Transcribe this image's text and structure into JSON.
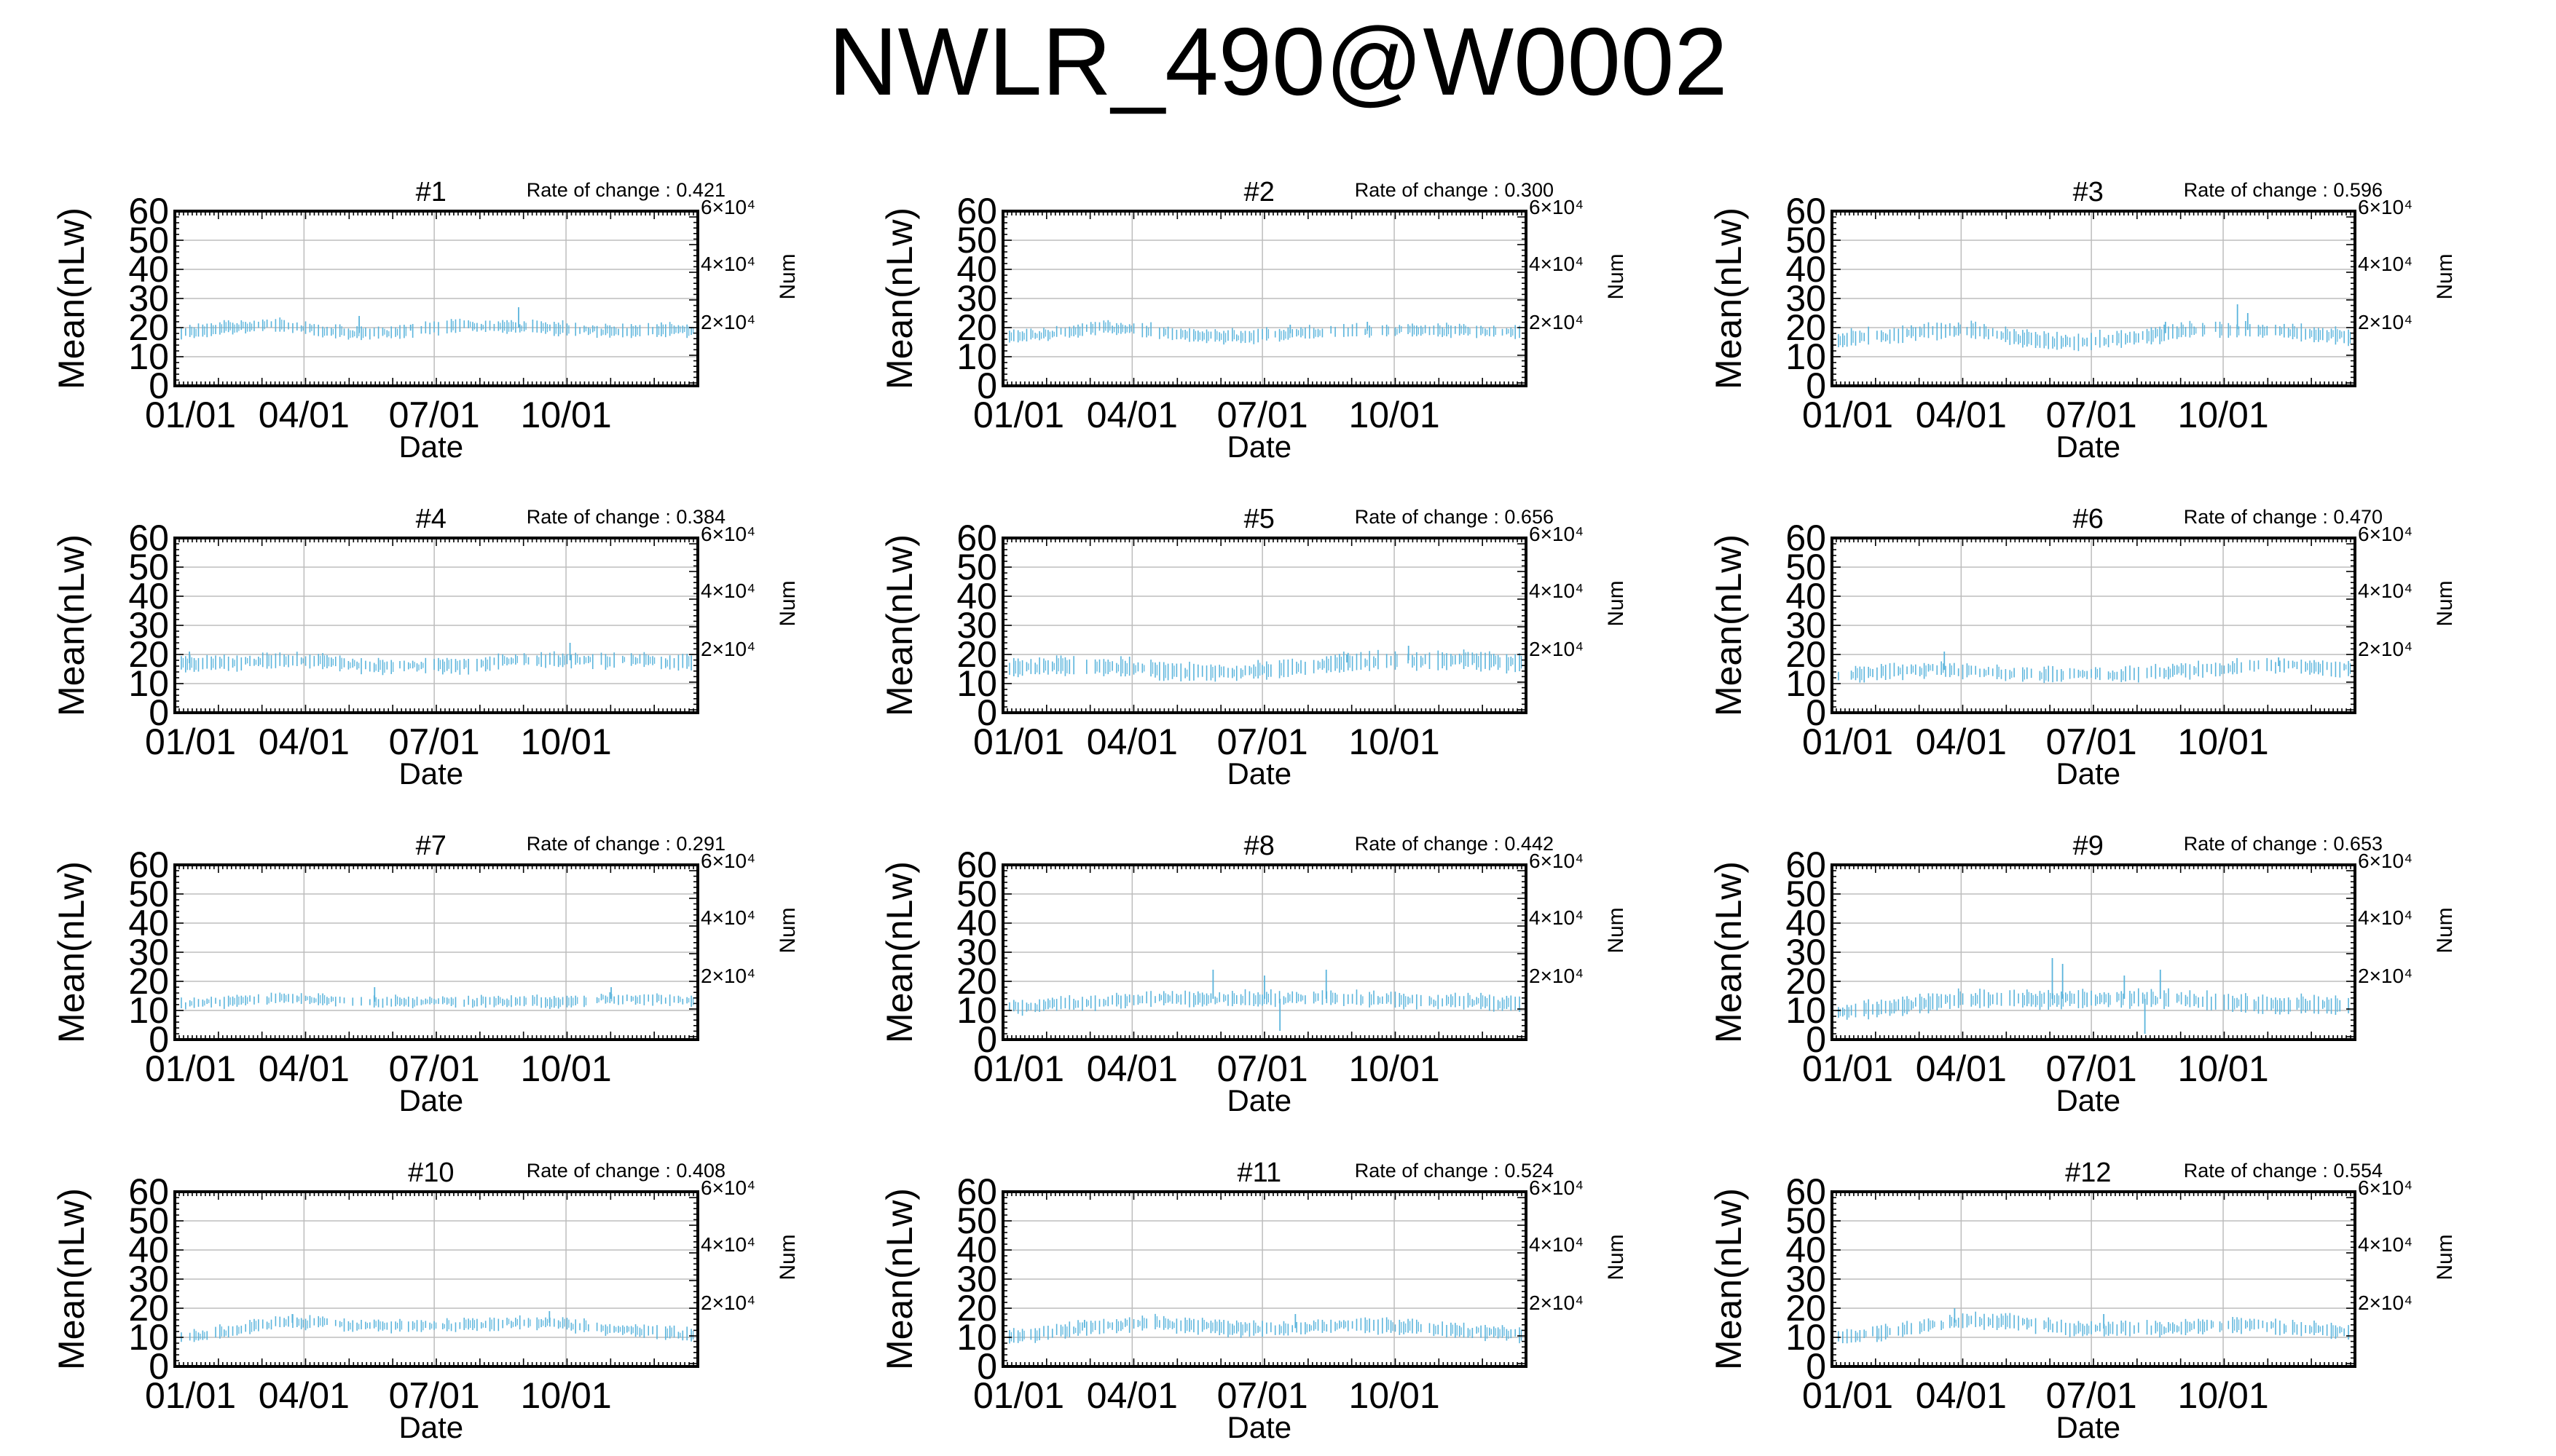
{
  "title": "NWLR_490@W0002",
  "colors": {
    "data": "#5ab4dc",
    "grid": "#bdbdbd",
    "axis": "#000000"
  },
  "chart_data": {
    "type": "scatter",
    "panel_count": 12,
    "grid": true,
    "xlabel": "Date",
    "ylabel": "Mean(nLw)",
    "y2label": "Num",
    "ylim": [
      0,
      60
    ],
    "yticks": [
      "0",
      "10",
      "20",
      "30",
      "40",
      "50",
      "60"
    ],
    "y2ticks": [
      "2×10⁴",
      "4×10⁴",
      "6×10⁴"
    ],
    "xticks": [
      "01/01",
      "04/01",
      "07/01",
      "10/01"
    ],
    "rate_prefix": "Rate of change : ",
    "panels": [
      {
        "label": "#1",
        "rate": "0.421",
        "profile": [
          18,
          20,
          21,
          19,
          18,
          19,
          21,
          20,
          20,
          19,
          19,
          19
        ],
        "spread": 3.5,
        "spikes": [
          [
            0.35,
            24
          ],
          [
            0.45,
            21
          ],
          [
            0.66,
            27
          ]
        ]
      },
      {
        "label": "#2",
        "rate": "0.300",
        "profile": [
          17,
          18,
          20,
          19,
          17,
          17,
          18,
          19,
          19,
          19,
          19,
          18
        ],
        "spread": 3.5,
        "spikes": [
          [
            0.55,
            21
          ],
          [
            0.7,
            22
          ]
        ]
      },
      {
        "label": "#3",
        "rate": "0.596",
        "profile": [
          16,
          17,
          19,
          19,
          16,
          15,
          16,
          18,
          20,
          19,
          18,
          17
        ],
        "spread": 4.5,
        "spikes": [
          [
            0.78,
            28
          ],
          [
            0.8,
            25
          ],
          [
            0.64,
            22
          ]
        ]
      },
      {
        "label": "#4",
        "rate": "0.384",
        "profile": [
          17,
          17,
          18,
          18,
          16,
          16,
          16,
          18,
          18,
          18,
          18,
          17
        ],
        "spread": 4,
        "spikes": [
          [
            0.76,
            24
          ],
          [
            0.02,
            21
          ]
        ]
      },
      {
        "label": "#5",
        "rate": "0.656",
        "profile": [
          15,
          16,
          16,
          15,
          14,
          14,
          15,
          17,
          18,
          18,
          18,
          17
        ],
        "spread": 5,
        "spikes": [
          [
            0.78,
            23
          ],
          [
            0.66,
            20
          ]
        ]
      },
      {
        "label": "#6",
        "rate": "0.470",
        "profile": [
          13,
          14,
          15,
          14,
          13,
          13,
          13,
          14,
          15,
          16,
          16,
          15
        ],
        "spread": 4,
        "spikes": [
          [
            0.21,
            21
          ],
          [
            0.86,
            19
          ]
        ]
      },
      {
        "label": "#7",
        "rate": "0.291",
        "profile": [
          12,
          13,
          14,
          14,
          13,
          13,
          13,
          13,
          13,
          14,
          14,
          13
        ],
        "spread": 3,
        "spikes": [
          [
            0.38,
            18
          ],
          [
            0.84,
            18
          ]
        ]
      },
      {
        "label": "#8",
        "rate": "0.442",
        "profile": [
          11,
          12,
          13,
          14,
          14,
          14,
          14,
          14,
          14,
          13,
          13,
          12
        ],
        "spread": 4,
        "spikes": [
          [
            0.4,
            24
          ],
          [
            0.5,
            22
          ],
          [
            0.62,
            24
          ],
          [
            0.53,
            3
          ]
        ]
      },
      {
        "label": "#9",
        "rate": "0.653",
        "profile": [
          9,
          11,
          13,
          14,
          14,
          14,
          14,
          14,
          13,
          12,
          12,
          11
        ],
        "spread": 5,
        "spikes": [
          [
            0.42,
            28
          ],
          [
            0.44,
            26
          ],
          [
            0.56,
            22
          ],
          [
            0.63,
            24
          ],
          [
            0.6,
            2
          ]
        ]
      },
      {
        "label": "#10",
        "rate": "0.408",
        "profile": [
          10,
          12,
          15,
          15,
          14,
          14,
          14,
          15,
          15,
          13,
          12,
          11
        ],
        "spread": 3.5,
        "spikes": [
          [
            0.22,
            18
          ],
          [
            0.72,
            19
          ]
        ]
      },
      {
        "label": "#11",
        "rate": "0.524",
        "profile": [
          10,
          12,
          14,
          15,
          14,
          13,
          13,
          14,
          14,
          13,
          12,
          11
        ],
        "spread": 4,
        "spikes": [
          [
            0.15,
            16
          ],
          [
            0.56,
            18
          ]
        ]
      },
      {
        "label": "#12",
        "rate": "0.554",
        "profile": [
          10,
          12,
          14,
          16,
          15,
          13,
          13,
          13,
          14,
          14,
          13,
          12
        ],
        "spread": 4,
        "spikes": [
          [
            0.23,
            20
          ],
          [
            0.52,
            18
          ]
        ]
      }
    ]
  }
}
